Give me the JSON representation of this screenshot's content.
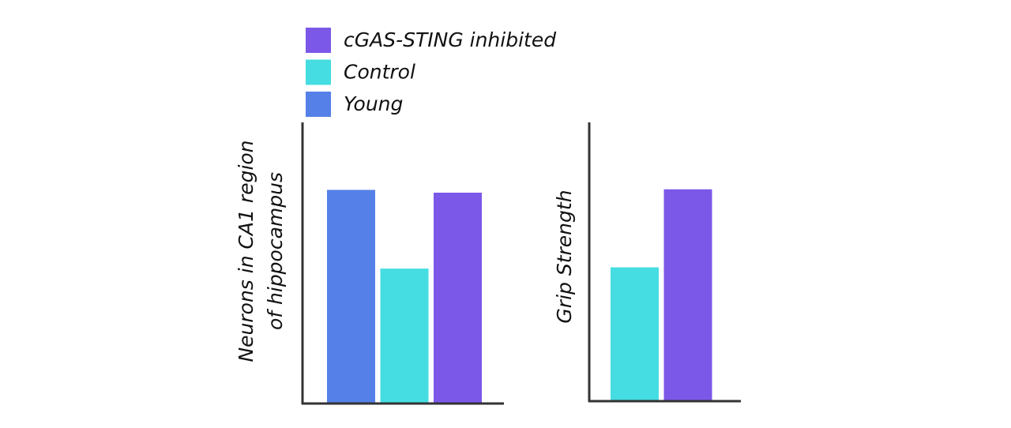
{
  "chart_data": [
    {
      "type": "bar",
      "ylabel": [
        "Neurons in CA1 region",
        "of hippocampus"
      ],
      "ylim": [
        0,
        100
      ],
      "series": [
        {
          "name": "Young",
          "color": "#5580e8",
          "values": [
            76
          ]
        },
        {
          "name": "Control",
          "color": "#45dde2",
          "values": [
            48
          ]
        },
        {
          "name": "cGAS-STING inhibited",
          "color": "#7b58e8",
          "values": [
            75
          ]
        }
      ]
    },
    {
      "type": "bar",
      "ylabel": [
        "Grip Strength"
      ],
      "ylim": [
        0,
        100
      ],
      "series": [
        {
          "color": "#45dde2",
          "values": [
            48
          ]
        },
        {
          "color": "#7b58e8",
          "values": [
            76
          ]
        }
      ]
    }
  ]
}
